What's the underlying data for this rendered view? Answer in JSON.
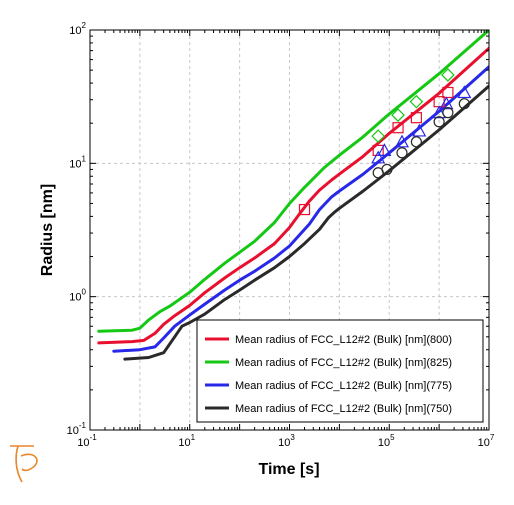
{
  "chart_data": {
    "type": "line",
    "title": "",
    "xlabel": "Time [s]",
    "ylabel": "Radius [nm]",
    "xscale": "log",
    "yscale": "log",
    "xlim": [
      0.1,
      10000000
    ],
    "ylim": [
      0.1,
      100
    ],
    "grid": true,
    "legend_position": "bottom-right",
    "x_ticks": [
      {
        "value": 0.1,
        "base": "10",
        "exp": "-1"
      },
      {
        "value": 10,
        "base": "10",
        "exp": "1"
      },
      {
        "value": 1000,
        "base": "10",
        "exp": "3"
      },
      {
        "value": 100000,
        "base": "10",
        "exp": "5"
      },
      {
        "value": 10000000,
        "base": "10",
        "exp": "7"
      }
    ],
    "y_ticks": [
      {
        "value": 0.1,
        "base": "10",
        "exp": "-1"
      },
      {
        "value": 1,
        "base": "10",
        "exp": "0"
      },
      {
        "value": 10,
        "base": "10",
        "exp": "1"
      },
      {
        "value": 100,
        "base": "10",
        "exp": "2"
      }
    ],
    "series": [
      {
        "name": "Mean radius of FCC_L12#2 (Bulk) [nm](800)",
        "color": "#e8102e",
        "marker": "square",
        "x": [
          0.15,
          0.7,
          1.2,
          2,
          3,
          5,
          10,
          20,
          50,
          100,
          200,
          500,
          1000,
          1600,
          2500,
          4000,
          7000,
          10000,
          30000,
          100000,
          1000000,
          10000000
        ],
        "y": [
          0.45,
          0.46,
          0.47,
          0.53,
          0.62,
          0.72,
          0.86,
          1.07,
          1.38,
          1.65,
          1.95,
          2.5,
          3.3,
          4.2,
          5.2,
          6.3,
          7.5,
          8.3,
          11.3,
          16.8,
          33.5,
          73
        ],
        "markers_x": [
          2000,
          60000,
          150000,
          350000,
          1000000,
          1500000
        ],
        "markers_y": [
          4.5,
          12.5,
          18.5,
          22,
          29,
          34
        ]
      },
      {
        "name": "Mean radius of FCC_L12#2 (Bulk) [nm](825)",
        "color": "#14c814",
        "marker": "diamond",
        "x": [
          0.15,
          0.7,
          1.0,
          1.5,
          2.5,
          4,
          10,
          20,
          50,
          100,
          200,
          500,
          1000,
          2000,
          5000,
          10000,
          30000,
          100000,
          1000000,
          10000000
        ],
        "y": [
          0.55,
          0.56,
          0.58,
          0.67,
          0.77,
          0.85,
          1.08,
          1.35,
          1.78,
          2.15,
          2.6,
          3.6,
          5.0,
          6.6,
          9.3,
          11.5,
          15.8,
          23.5,
          47,
          100
        ],
        "markers_x": [
          60000,
          150000,
          350000,
          1500000
        ],
        "markers_y": [
          16,
          23,
          29,
          46
        ]
      },
      {
        "name": "Mean radius of FCC_L12#2 (Bulk) [nm](775)",
        "color": "#2828e8",
        "marker": "triangle",
        "x": [
          0.3,
          1.0,
          2,
          3,
          5,
          10,
          20,
          50,
          100,
          200,
          500,
          1000,
          2500,
          4000,
          7000,
          10000,
          30000,
          100000,
          1000000,
          10000000
        ],
        "y": [
          0.39,
          0.4,
          0.42,
          0.49,
          0.6,
          0.73,
          0.88,
          1.12,
          1.33,
          1.55,
          1.95,
          2.4,
          3.5,
          4.5,
          5.6,
          6.2,
          8.3,
          12,
          24.5,
          53
        ],
        "markers_x": [
          60000,
          80000,
          180000,
          400000,
          1000000,
          1400000,
          3200000
        ],
        "markers_y": [
          11,
          12.5,
          14.5,
          17.5,
          24,
          28,
          34
        ]
      },
      {
        "name": "Mean radius of FCC_L12#2 (Bulk) [nm](750)",
        "color": "#2a2a2a",
        "marker": "circle",
        "x": [
          0.5,
          1.5,
          3,
          5,
          7,
          10,
          20,
          50,
          100,
          200,
          500,
          1000,
          2000,
          4000,
          6000,
          8000,
          10000,
          30000,
          100000,
          1000000,
          10000000
        ],
        "y": [
          0.34,
          0.35,
          0.38,
          0.5,
          0.6,
          0.64,
          0.74,
          0.95,
          1.12,
          1.33,
          1.65,
          2.0,
          2.5,
          3.2,
          3.9,
          4.3,
          4.6,
          6.2,
          8.8,
          17.8,
          38
        ],
        "markers_x": [
          60000,
          90000,
          180000,
          350000,
          1000000,
          1500000,
          3200000
        ],
        "markers_y": [
          8.5,
          9,
          12,
          14.5,
          20.5,
          24,
          28
        ]
      }
    ]
  }
}
